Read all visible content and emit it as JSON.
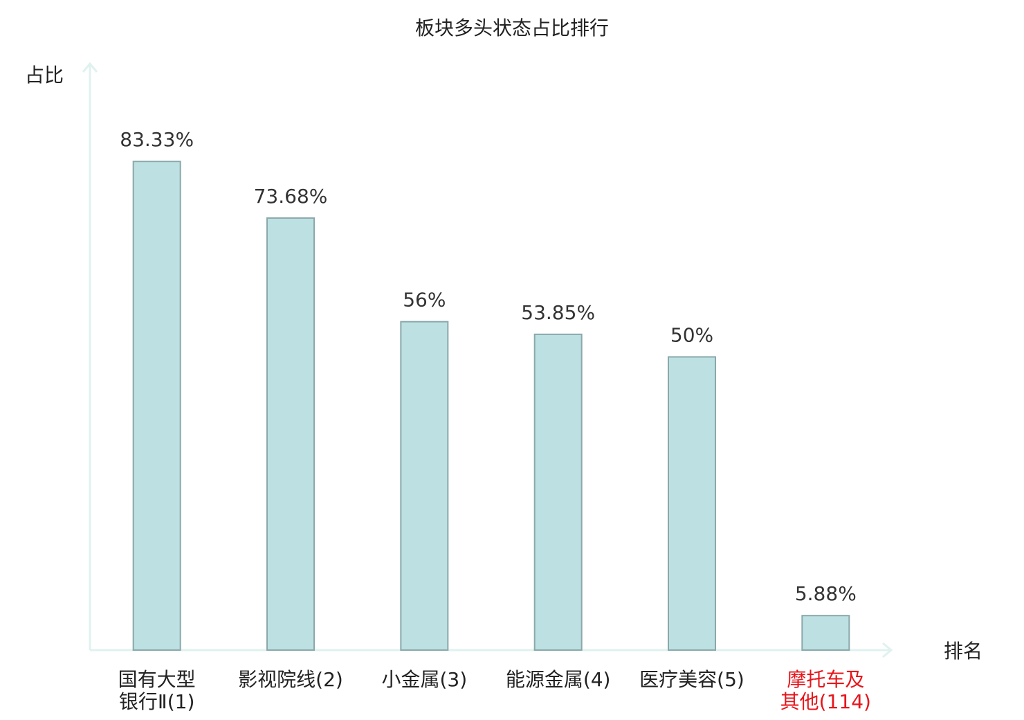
{
  "chart_data": {
    "type": "bar",
    "title": "板块多头状态占比排行",
    "y_label": "占比",
    "x_label": "排名",
    "categories": [
      "国有大型\n银行Ⅱ(1)",
      "影视院线(2)",
      "小金属(3)",
      "能源金属(4)",
      "医疗美容(5)",
      "摩托车及\n其他(114)"
    ],
    "category_colors": [
      "#222222",
      "#222222",
      "#222222",
      "#222222",
      "#222222",
      "#e8141a"
    ],
    "values": [
      83.33,
      73.68,
      56,
      53.85,
      50,
      5.88
    ],
    "value_labels": [
      "83.33%",
      "73.68%",
      "56%",
      "53.85%",
      "50%",
      "5.88%"
    ],
    "color": "#bde0e3",
    "edge_color": "#8aa8aa",
    "ylim": [
      0,
      100
    ]
  }
}
